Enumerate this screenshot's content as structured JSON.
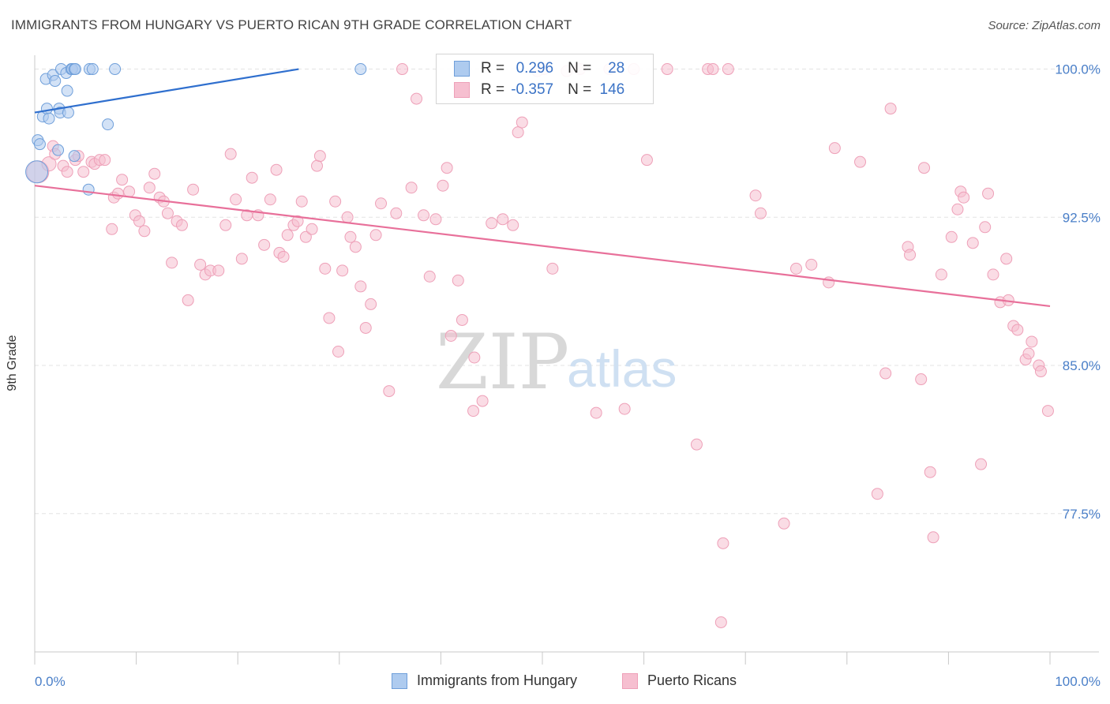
{
  "header": {
    "title": "IMMIGRANTS FROM HUNGARY VS PUERTO RICAN 9TH GRADE CORRELATION CHART",
    "source": "Source: ZipAtlas.com"
  },
  "watermark": {
    "zip": "ZIP",
    "atlas": "atlas"
  },
  "legend": {
    "rows": [
      {
        "r_label": "R =",
        "r_value": "0.296",
        "n_label": "N =",
        "n_value": "28"
      },
      {
        "r_label": "R =",
        "r_value": "-0.357",
        "n_label": "N =",
        "n_value": "146"
      }
    ]
  },
  "bottom_legend": {
    "series1": "Immigrants from Hungary",
    "series2": "Puerto Ricans"
  },
  "colors": {
    "blue_fill": "#aecbef",
    "blue_stroke": "#6f9fda",
    "blue_line": "#2f6fce",
    "pink_fill": "#f6bfd0",
    "pink_stroke": "#eea0b8",
    "pink_line": "#e8709a",
    "tick_text": "#4a7fc8",
    "grid": "#e3e3e3"
  },
  "chart_data": {
    "type": "scatter",
    "title": "IMMIGRANTS FROM HUNGARY VS PUERTO RICAN 9TH GRADE CORRELATION CHART",
    "xlabel": "",
    "ylabel": "9th Grade",
    "xlim": [
      0,
      100
    ],
    "ylim": [
      70.5,
      100.7
    ],
    "y_ticks": [
      77.5,
      85.0,
      92.5,
      100.0
    ],
    "y_tick_labels": [
      "77.5%",
      "85.0%",
      "92.5%",
      "100.0%"
    ],
    "x_tick_labels": [
      "0.0%",
      "100.0%"
    ],
    "grid": true,
    "legend_position": "top-center",
    "series": [
      {
        "name": "Immigrants from Hungary",
        "color": "#aecbef",
        "trend": {
          "x": [
            0.0,
            26.0
          ],
          "y": [
            97.8,
            100.0
          ]
        },
        "points": [
          [
            0.2,
            94.8,
            14
          ],
          [
            0.3,
            96.4,
            7
          ],
          [
            0.5,
            96.2,
            7
          ],
          [
            0.8,
            97.6,
            7
          ],
          [
            1.1,
            99.5,
            7
          ],
          [
            1.2,
            98.0,
            7
          ],
          [
            1.4,
            97.5,
            7
          ],
          [
            1.8,
            99.7,
            7
          ],
          [
            2.0,
            99.4,
            7
          ],
          [
            2.3,
            95.9,
            7
          ],
          [
            2.4,
            98.0,
            7
          ],
          [
            2.5,
            97.8,
            7
          ],
          [
            2.6,
            100.0,
            7
          ],
          [
            3.1,
            99.8,
            7
          ],
          [
            3.2,
            98.9,
            7
          ],
          [
            3.3,
            97.8,
            7
          ],
          [
            3.6,
            100.0,
            7
          ],
          [
            3.7,
            100.0,
            7
          ],
          [
            3.9,
            100.0,
            7
          ],
          [
            3.9,
            95.6,
            7
          ],
          [
            4.0,
            100.0,
            7
          ],
          [
            5.3,
            93.9,
            7
          ],
          [
            5.4,
            100.0,
            7
          ],
          [
            5.7,
            100.0,
            7
          ],
          [
            7.2,
            97.2,
            7
          ],
          [
            7.9,
            100.0,
            7
          ],
          [
            32.1,
            100.0,
            7
          ]
        ]
      },
      {
        "name": "Puerto Ricans",
        "color": "#f6bfd0",
        "trend": {
          "x": [
            0.0,
            100.0
          ],
          "y": [
            94.1,
            88.0
          ]
        },
        "points": [
          [
            0.3,
            94.8,
            14
          ],
          [
            1.4,
            95.2,
            9
          ],
          [
            1.8,
            96.1,
            7
          ],
          [
            2.0,
            95.7,
            7
          ],
          [
            2.8,
            95.1,
            7
          ],
          [
            3.2,
            94.8,
            7
          ],
          [
            4.0,
            95.4,
            7
          ],
          [
            4.3,
            95.6,
            7
          ],
          [
            4.8,
            94.8,
            7
          ],
          [
            5.6,
            95.3,
            7
          ],
          [
            5.9,
            95.2,
            7
          ],
          [
            6.4,
            95.4,
            7
          ],
          [
            6.9,
            95.4,
            7
          ],
          [
            7.6,
            91.9,
            7
          ],
          [
            7.8,
            93.5,
            7
          ],
          [
            8.2,
            93.7,
            7
          ],
          [
            8.6,
            94.4,
            7
          ],
          [
            9.3,
            93.8,
            7
          ],
          [
            9.9,
            92.6,
            7
          ],
          [
            10.3,
            92.3,
            7
          ],
          [
            10.8,
            91.8,
            7
          ],
          [
            11.3,
            94.0,
            7
          ],
          [
            11.8,
            94.7,
            7
          ],
          [
            12.3,
            93.5,
            7
          ],
          [
            12.7,
            93.3,
            7
          ],
          [
            13.1,
            92.7,
            7
          ],
          [
            13.5,
            90.2,
            7
          ],
          [
            14.0,
            92.3,
            7
          ],
          [
            14.5,
            92.1,
            7
          ],
          [
            15.1,
            88.3,
            7
          ],
          [
            15.6,
            93.9,
            7
          ],
          [
            16.3,
            90.1,
            7
          ],
          [
            16.8,
            89.6,
            7
          ],
          [
            17.3,
            89.8,
            7
          ],
          [
            18.1,
            89.8,
            7
          ],
          [
            18.8,
            92.1,
            7
          ],
          [
            19.3,
            95.7,
            7
          ],
          [
            19.8,
            93.4,
            7
          ],
          [
            20.4,
            90.4,
            7
          ],
          [
            20.9,
            92.6,
            7
          ],
          [
            21.4,
            94.5,
            7
          ],
          [
            22.0,
            92.6,
            7
          ],
          [
            22.6,
            91.1,
            7
          ],
          [
            23.2,
            93.4,
            7
          ],
          [
            23.8,
            94.9,
            7
          ],
          [
            24.1,
            90.7,
            7
          ],
          [
            24.5,
            90.5,
            7
          ],
          [
            24.9,
            91.6,
            7
          ],
          [
            25.5,
            92.1,
            7
          ],
          [
            25.9,
            92.3,
            7
          ],
          [
            26.3,
            93.3,
            7
          ],
          [
            26.7,
            91.5,
            7
          ],
          [
            27.3,
            91.9,
            7
          ],
          [
            27.8,
            95.1,
            7
          ],
          [
            28.1,
            95.6,
            7
          ],
          [
            28.6,
            89.9,
            7
          ],
          [
            29.0,
            87.4,
            7
          ],
          [
            29.6,
            93.3,
            7
          ],
          [
            29.9,
            85.7,
            7
          ],
          [
            30.3,
            89.8,
            7
          ],
          [
            30.8,
            92.5,
            7
          ],
          [
            31.1,
            91.5,
            7
          ],
          [
            31.6,
            91.0,
            7
          ],
          [
            32.1,
            89.0,
            7
          ],
          [
            32.6,
            86.9,
            7
          ],
          [
            33.1,
            88.1,
            7
          ],
          [
            33.6,
            91.6,
            7
          ],
          [
            34.1,
            93.2,
            7
          ],
          [
            34.9,
            83.7,
            7
          ],
          [
            35.6,
            92.7,
            7
          ],
          [
            36.2,
            100.0,
            7
          ],
          [
            37.1,
            94.0,
            7
          ],
          [
            37.6,
            98.5,
            7
          ],
          [
            38.3,
            92.6,
            7
          ],
          [
            38.9,
            89.5,
            7
          ],
          [
            39.5,
            92.4,
            7
          ],
          [
            40.2,
            94.1,
            7
          ],
          [
            40.6,
            95.0,
            7
          ],
          [
            41.0,
            86.5,
            7
          ],
          [
            41.7,
            89.3,
            7
          ],
          [
            42.1,
            87.3,
            7
          ],
          [
            43.3,
            85.4,
            7
          ],
          [
            43.2,
            82.7,
            7
          ],
          [
            44.1,
            83.2,
            7
          ],
          [
            45.0,
            92.2,
            7
          ],
          [
            46.1,
            92.4,
            7
          ],
          [
            47.1,
            92.1,
            7
          ],
          [
            47.6,
            96.8,
            7
          ],
          [
            48.0,
            97.3,
            7
          ],
          [
            49.5,
            99.9,
            7
          ],
          [
            50.2,
            100.0,
            7
          ],
          [
            51.0,
            89.9,
            7
          ],
          [
            52.4,
            99.9,
            7
          ],
          [
            53.7,
            100.0,
            7
          ],
          [
            55.3,
            82.6,
            7
          ],
          [
            56.6,
            100.0,
            7
          ],
          [
            58.1,
            82.8,
            7
          ],
          [
            59.0,
            100.0,
            7
          ],
          [
            60.3,
            95.4,
            7
          ],
          [
            62.3,
            100.0,
            7
          ],
          [
            65.2,
            81.0,
            7
          ],
          [
            66.3,
            100.0,
            7
          ],
          [
            66.8,
            100.0,
            7
          ],
          [
            67.8,
            76.0,
            7
          ],
          [
            67.6,
            72.0,
            7
          ],
          [
            68.3,
            100.0,
            7
          ],
          [
            71.0,
            93.6,
            7
          ],
          [
            71.5,
            92.7,
            7
          ],
          [
            73.8,
            77.0,
            7
          ],
          [
            75.0,
            89.9,
            7
          ],
          [
            76.5,
            90.1,
            7
          ],
          [
            78.2,
            89.2,
            7
          ],
          [
            78.8,
            96.0,
            7
          ],
          [
            81.3,
            95.3,
            7
          ],
          [
            83.0,
            78.5,
            7
          ],
          [
            83.8,
            84.6,
            7
          ],
          [
            84.3,
            98.0,
            7
          ],
          [
            86.0,
            91.0,
            7
          ],
          [
            86.2,
            90.6,
            7
          ],
          [
            87.3,
            84.3,
            7
          ],
          [
            87.6,
            95.0,
            7
          ],
          [
            88.2,
            79.6,
            7
          ],
          [
            88.5,
            76.3,
            7
          ],
          [
            89.3,
            89.6,
            7
          ],
          [
            90.3,
            91.5,
            7
          ],
          [
            90.9,
            92.9,
            7
          ],
          [
            91.2,
            93.8,
            7
          ],
          [
            91.5,
            93.5,
            7
          ],
          [
            92.4,
            91.2,
            7
          ],
          [
            93.2,
            80.0,
            7
          ],
          [
            93.6,
            92.0,
            7
          ],
          [
            93.9,
            93.7,
            7
          ],
          [
            94.4,
            89.6,
            7
          ],
          [
            95.1,
            88.2,
            7
          ],
          [
            95.7,
            90.4,
            7
          ],
          [
            95.9,
            88.3,
            7
          ],
          [
            96.4,
            87.0,
            7
          ],
          [
            96.8,
            86.8,
            7
          ],
          [
            97.6,
            85.3,
            7
          ],
          [
            97.9,
            85.6,
            7
          ],
          [
            98.2,
            86.2,
            7
          ],
          [
            98.9,
            85.0,
            7
          ],
          [
            99.1,
            84.7,
            7
          ],
          [
            99.8,
            82.7,
            7
          ]
        ]
      }
    ]
  }
}
